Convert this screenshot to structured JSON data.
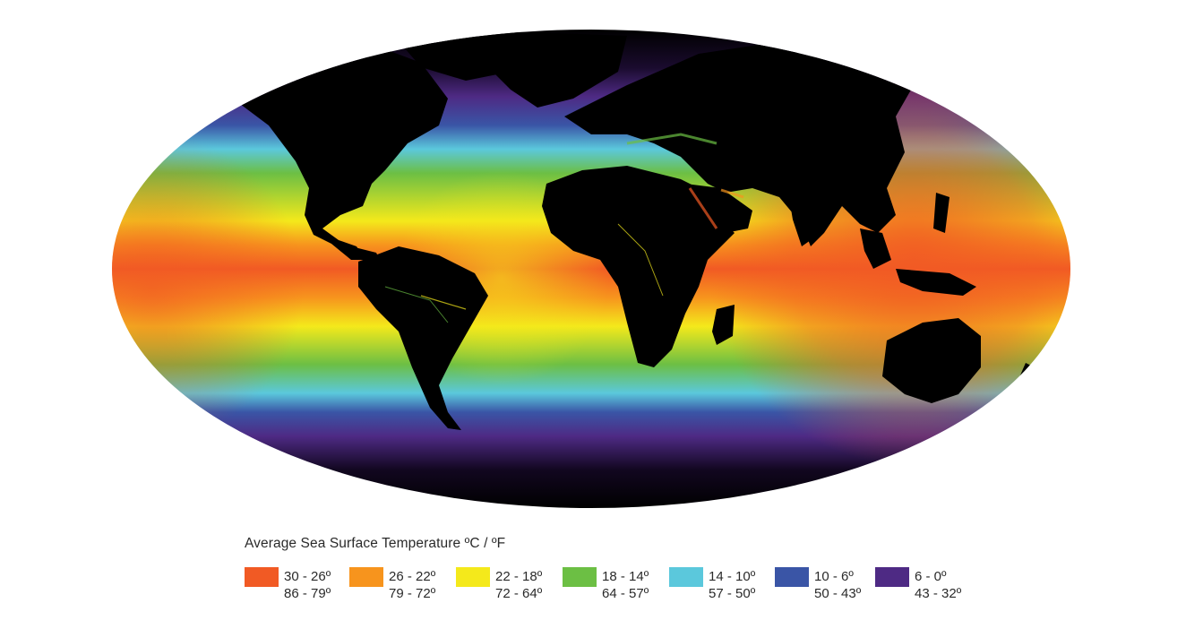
{
  "map": {
    "projection": "Mollweide",
    "colors": {
      "land": "#000000"
    }
  },
  "legend": {
    "title": "Average Sea Surface Temperature ºC / ºF",
    "items": [
      {
        "celsius": "30 - 26º",
        "fahrenheit": "86 - 79º",
        "color": "#f15a24"
      },
      {
        "celsius": "26 - 22º",
        "fahrenheit": "79 - 72º",
        "color": "#f7941d"
      },
      {
        "celsius": "22 - 18º",
        "fahrenheit": "72 - 64º",
        "color": "#f4e91b"
      },
      {
        "celsius": "18 - 14º",
        "fahrenheit": "64 - 57º",
        "color": "#6cbf44"
      },
      {
        "celsius": "14 - 10º",
        "fahrenheit": "57 - 50º",
        "color": "#5bc8dc"
      },
      {
        "celsius": "10 - 6º",
        "fahrenheit": "50 - 43º",
        "color": "#3a55a6"
      },
      {
        "celsius": "6 - 0º",
        "fahrenheit": "43 - 32º",
        "color": "#4e2a84"
      }
    ]
  }
}
